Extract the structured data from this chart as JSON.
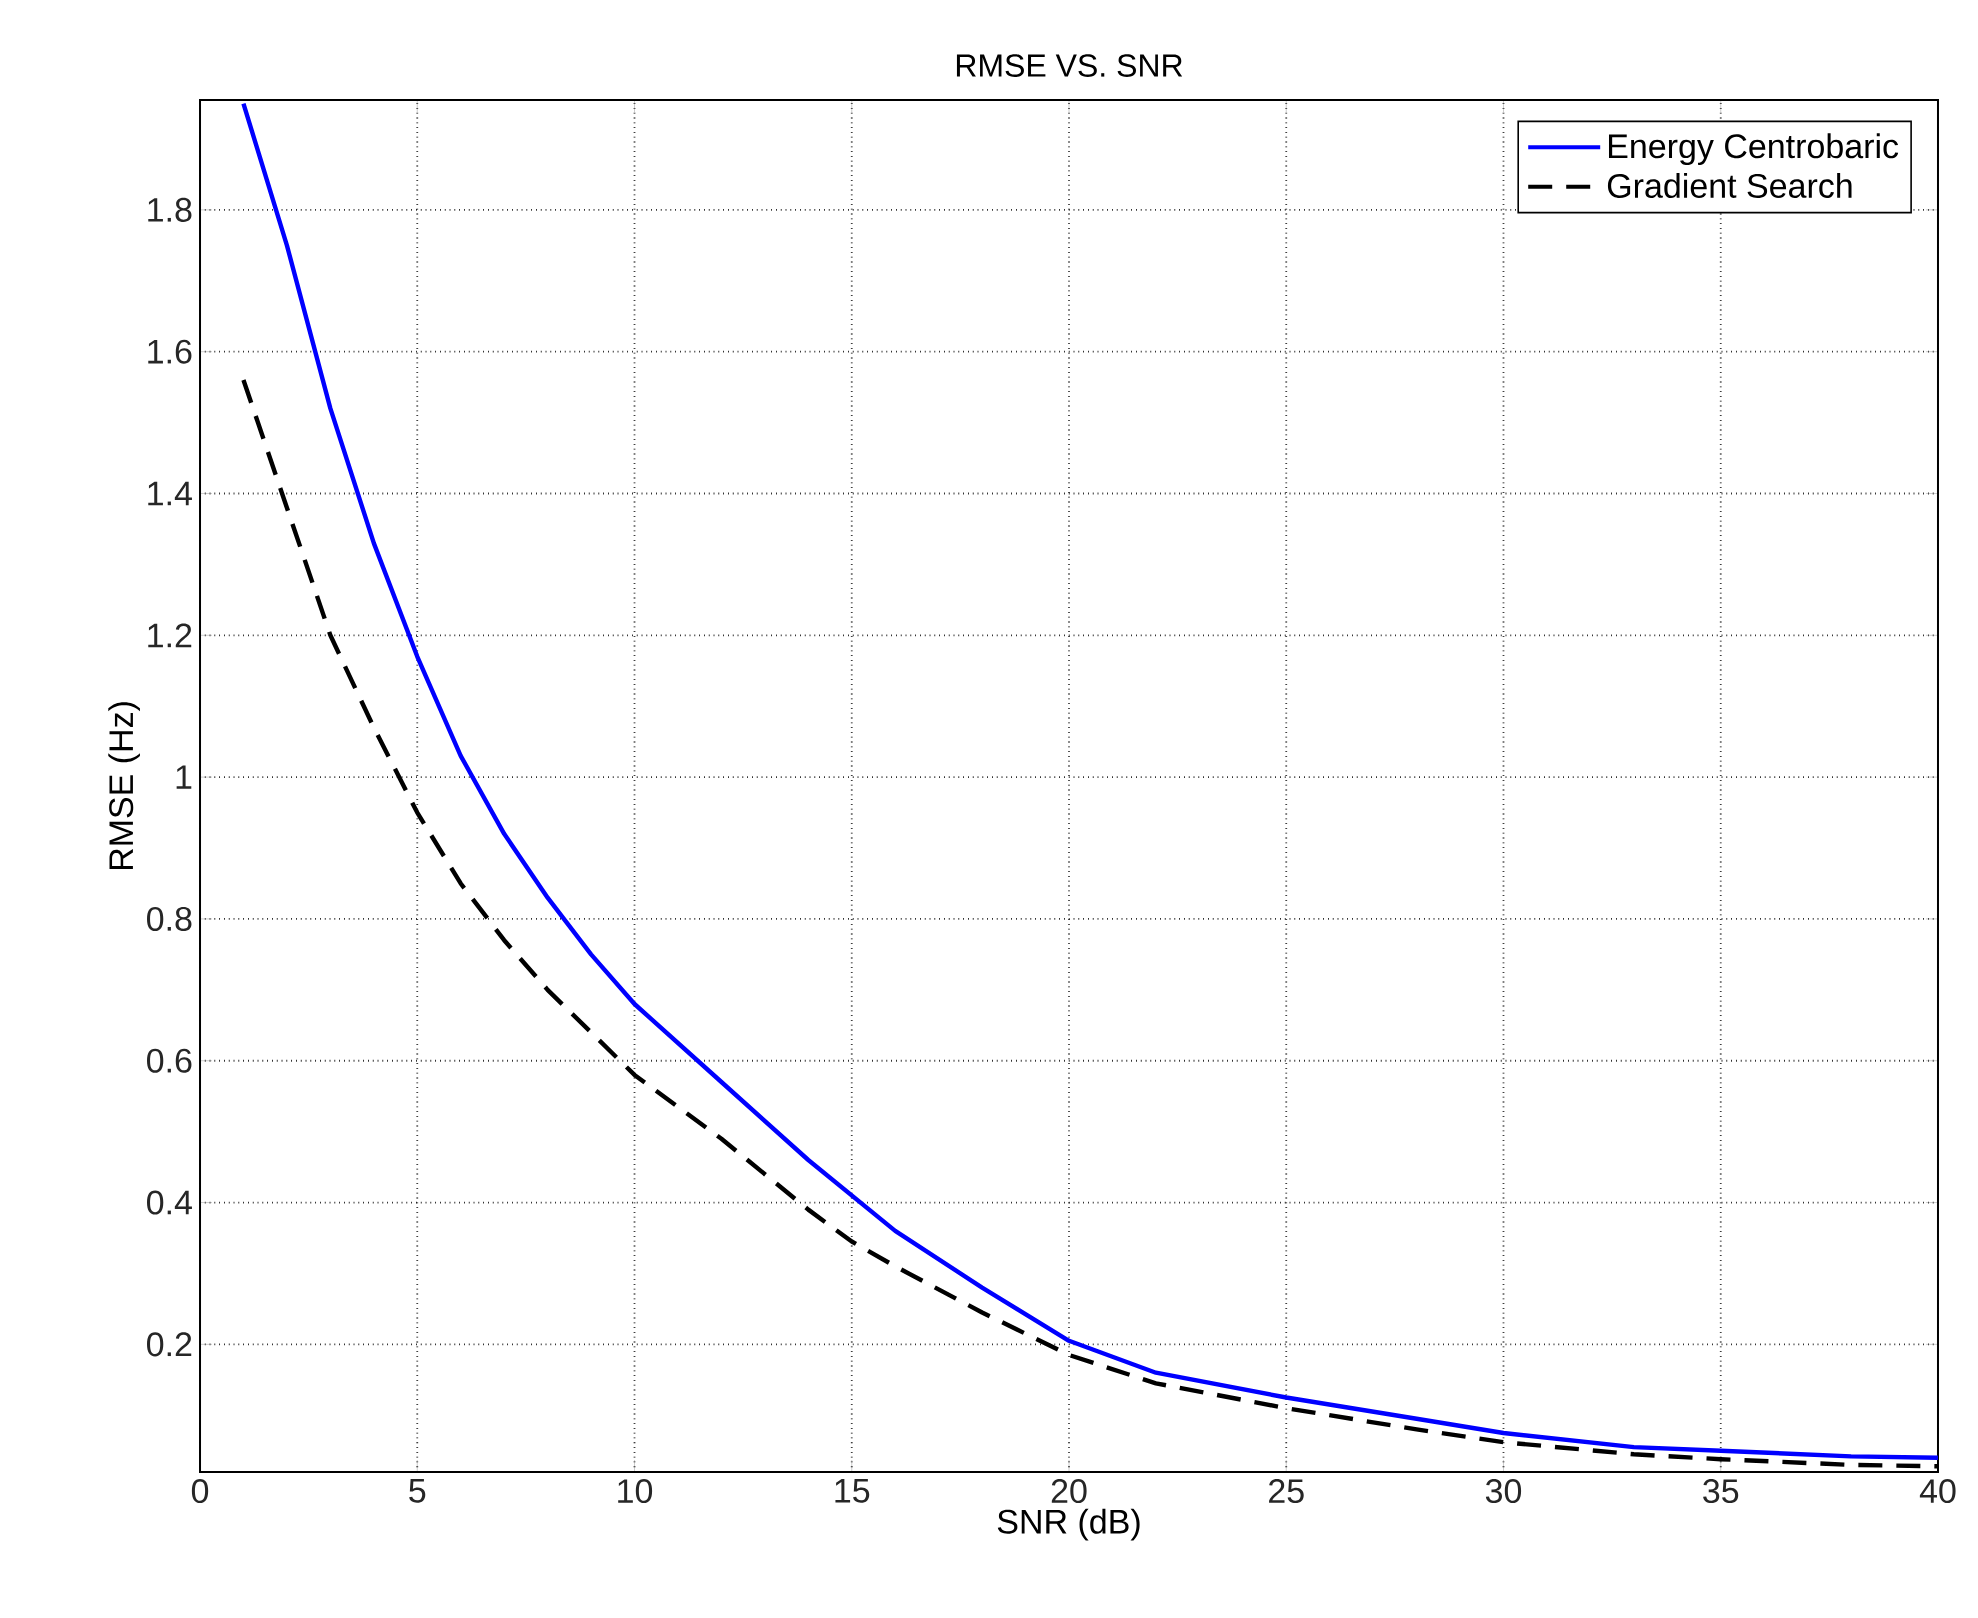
{
  "chart_data": {
    "type": "line",
    "title": "RMSE VS. SNR",
    "xlabel": "SNR (dB)",
    "ylabel": "RMSE (Hz)",
    "xlim": [
      0,
      40
    ],
    "ylim": [
      0.02,
      1.955
    ],
    "xticks": [
      0,
      5,
      10,
      15,
      20,
      25,
      30,
      35,
      40
    ],
    "yticks": [
      0.2,
      0.4,
      0.6,
      0.8,
      1,
      1.2,
      1.4,
      1.6,
      1.8
    ],
    "grid": true,
    "legend": "top right",
    "marker": "none",
    "series": [
      {
        "name": "Energy Centrobaric",
        "color": "#0000ff",
        "line_style": "solid",
        "x": [
          1,
          2,
          3,
          4,
          5,
          6,
          7,
          8,
          9,
          10,
          12,
          14,
          15,
          16,
          18,
          20,
          22,
          25,
          28,
          30,
          33,
          35,
          38,
          40
        ],
        "values": [
          1.95,
          1.75,
          1.52,
          1.33,
          1.17,
          1.03,
          0.92,
          0.83,
          0.75,
          0.68,
          0.57,
          0.46,
          0.41,
          0.36,
          0.28,
          0.205,
          0.16,
          0.125,
          0.095,
          0.075,
          0.055,
          0.05,
          0.042,
          0.04
        ]
      },
      {
        "name": "Gradient Search",
        "color": "#000000",
        "line_style": "dashed",
        "x": [
          1,
          2,
          3,
          4,
          5,
          6,
          7,
          8,
          9,
          10,
          12,
          14,
          15,
          16,
          18,
          20,
          22,
          25,
          28,
          30,
          33,
          35,
          38,
          40
        ],
        "values": [
          1.56,
          1.38,
          1.2,
          1.07,
          0.95,
          0.85,
          0.77,
          0.7,
          0.64,
          0.58,
          0.49,
          0.39,
          0.345,
          0.31,
          0.245,
          0.185,
          0.145,
          0.11,
          0.08,
          0.062,
          0.045,
          0.038,
          0.03,
          0.028
        ]
      }
    ]
  }
}
